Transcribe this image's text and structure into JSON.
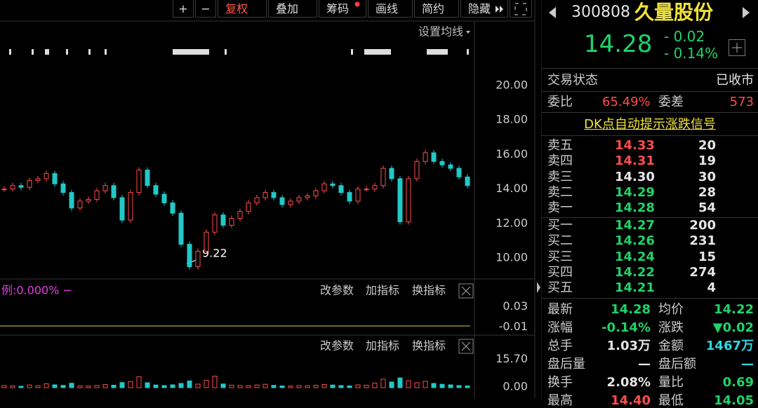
{
  "toolbar": {
    "buttons": [
      "+",
      "−",
      "复权",
      "叠加",
      "筹码",
      "画线",
      "简约",
      "隐藏"
    ]
  },
  "price_chart": {
    "ma_setting": "设置均线",
    "ylim": [
      8.3,
      21.5
    ],
    "yticks": [
      {
        "value": 20,
        "label": "20.00"
      },
      {
        "value": 18,
        "label": "18.00"
      },
      {
        "value": 16,
        "label": "16.00"
      },
      {
        "value": 14,
        "label": "14.00"
      },
      {
        "value": 12,
        "label": "12.00"
      },
      {
        "value": 10,
        "label": "10.00"
      }
    ],
    "low_label": 9.22,
    "closes": [
      14.0,
      14.2,
      14.1,
      14.5,
      14.6,
      14.9,
      14.3,
      13.8,
      12.9,
      13.3,
      13.4,
      13.9,
      14.2,
      13.5,
      12.2,
      13.8,
      15.1,
      14.2,
      13.7,
      13.2,
      12.6,
      10.8,
      9.5,
      10.4,
      11.5,
      12.5,
      11.9,
      12.3,
      12.7,
      13.2,
      13.5,
      13.8,
      13.5,
      13.1,
      13.3,
      13.5,
      13.6,
      13.9,
      14.3,
      14.2,
      13.8,
      13.3,
      14.0,
      14.0,
      14.2,
      15.2,
      14.6,
      12.1,
      14.6,
      15.6,
      16.1,
      15.6,
      15.4,
      15.2,
      14.7,
      14.2
    ]
  },
  "indicator_panel": {
    "label": "例:0.000% −",
    "buttons": [
      "改参数",
      "加指标",
      "换指标"
    ],
    "ylim": [
      -0.012,
      0.04
    ],
    "yticks": [
      0.03,
      -0.01
    ]
  },
  "volume_panel": {
    "buttons": [
      "改参数",
      "加指标",
      "换指标"
    ],
    "ylim": [
      0,
      17
    ],
    "yticks": [
      {
        "value": 15.7,
        "label": "15.70"
      },
      {
        "value": 0,
        "label": "0.00"
      }
    ],
    "volumes": [
      1.2,
      1.0,
      0.8,
      1.5,
      1.1,
      2.2,
      1.6,
      1.3,
      2.5,
      1.0,
      0.9,
      1.2,
      1.8,
      1.4,
      2.9,
      3.4,
      6.2,
      2.8,
      1.5,
      1.2,
      1.6,
      2.4,
      3.8,
      2.0,
      4.2,
      6.5,
      2.1,
      1.4,
      1.2,
      1.1,
      1.5,
      1.9,
      1.3,
      1.0,
      0.9,
      1.2,
      1.1,
      1.4,
      1.8,
      1.5,
      1.2,
      1.0,
      1.6,
      1.4,
      2.6,
      4.8,
      3.2,
      5.5,
      3.9,
      2.8,
      3.6,
      2.4,
      1.9,
      1.6,
      1.2,
      1.0
    ]
  },
  "quote": {
    "code": "300808",
    "name": "久量股份",
    "price": "14.28",
    "change": "- 0.02",
    "change_pct": "- 0.14%",
    "status_label": "交易状态",
    "status": "已收市",
    "ratio_label": "委比",
    "ratio": "65.49%",
    "diff_label": "委差",
    "diff": 573,
    "signal": "DK点自动提示涨跌信号",
    "asks": [
      {
        "name": "卖五",
        "price": "14.33",
        "volume": 20,
        "color": "#ff4d4d"
      },
      {
        "name": "卖四",
        "price": "14.31",
        "volume": 19,
        "color": "#ff4d4d"
      },
      {
        "name": "卖三",
        "price": "14.30",
        "volume": 30,
        "color": "#e6e6e6"
      },
      {
        "name": "卖二",
        "price": "14.29",
        "volume": 28,
        "color": "#1fd36a"
      },
      {
        "name": "卖一",
        "price": "14.28",
        "volume": 54,
        "color": "#1fd36a"
      }
    ],
    "bids": [
      {
        "name": "买一",
        "price": "14.27",
        "volume": 200,
        "color": "#1fd36a"
      },
      {
        "name": "买二",
        "price": "14.26",
        "volume": 231,
        "color": "#1fd36a"
      },
      {
        "name": "买三",
        "price": "14.24",
        "volume": 15,
        "color": "#1fd36a"
      },
      {
        "name": "买四",
        "price": "14.22",
        "volume": 274,
        "color": "#1fd36a"
      },
      {
        "name": "买五",
        "price": "14.21",
        "volume": 4,
        "color": "#1fd36a"
      }
    ],
    "stats": [
      {
        "label": "最新",
        "value": "14.28",
        "color": "#1fd36a"
      },
      {
        "label": "均价",
        "value": "14.22",
        "color": "#1fd36a"
      },
      {
        "label": "涨幅",
        "value": "-0.14%",
        "color": "#1fd36a"
      },
      {
        "label": "涨跌",
        "value": "▼0.02",
        "color": "#1fd36a"
      },
      {
        "label": "总手",
        "value": "1.03万",
        "color": "#e6e6e6"
      },
      {
        "label": "金额",
        "value": "1467万",
        "color": "#2fd8e0"
      },
      {
        "label": "盘后量",
        "value": "—",
        "color": "#e6e6e6"
      },
      {
        "label": "盘后额",
        "value": "—",
        "color": "#2fd8e0"
      },
      {
        "label": "换手",
        "value": "2.08%",
        "color": "#e6e6e6"
      },
      {
        "label": "量比",
        "value": "0.69",
        "color": "#1fd36a"
      },
      {
        "label": "最高",
        "value": "14.40",
        "color": "#ff4d4d"
      },
      {
        "label": "最低",
        "value": "14.05",
        "color": "#1fd36a"
      }
    ]
  }
}
